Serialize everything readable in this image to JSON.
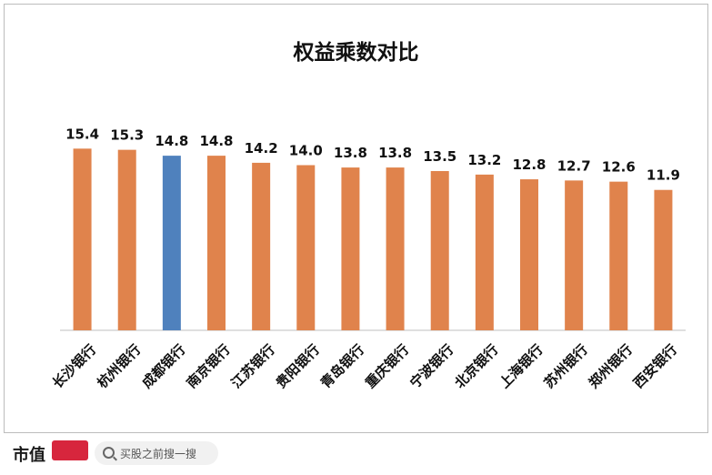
{
  "chart_data": {
    "type": "bar",
    "title": "权益乘数对比",
    "categories": [
      "长沙银行",
      "杭州银行",
      "成都银行",
      "南京银行",
      "江苏银行",
      "贵阳银行",
      "青岛银行",
      "重庆银行",
      "宁波银行",
      "北京银行",
      "上海银行",
      "苏州银行",
      "郑州银行",
      "西安银行"
    ],
    "values": [
      15.4,
      15.3,
      14.8,
      14.8,
      14.2,
      14.0,
      13.8,
      13.8,
      13.5,
      13.2,
      12.8,
      12.7,
      12.6,
      11.9
    ],
    "value_labels": [
      "15.4",
      "15.3",
      "14.8",
      "14.8",
      "14.2",
      "14.0",
      "13.8",
      "13.8",
      "13.5",
      "13.2",
      "12.8",
      "12.7",
      "12.6",
      "11.9"
    ],
    "highlight_index": 2,
    "ylim": [
      0,
      17.2
    ],
    "grid": false,
    "colors": {
      "default": "#e0834c",
      "highlight": "#4f81bd"
    }
  },
  "footer": {
    "logo": "市值",
    "search_icon": "search-icon",
    "search_text": "买股之前搜一搜"
  }
}
